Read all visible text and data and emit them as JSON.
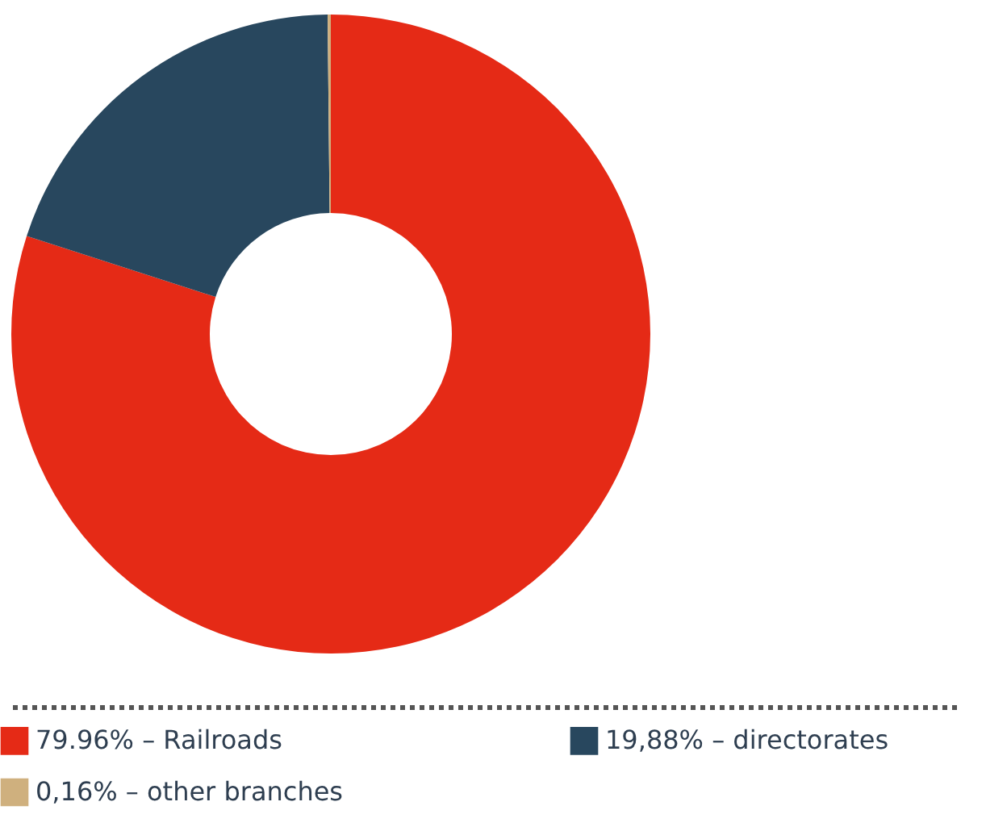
{
  "chart_data": {
    "type": "donut",
    "categories": [
      "79.96% – Railroads",
      "19,88% – directorates",
      "0,16% – other branches"
    ],
    "values": [
      79.96,
      19.88,
      0.16
    ],
    "colors": [
      "#e52a16",
      "#28475e",
      "#cfb07e"
    ],
    "legend": "bottom"
  }
}
